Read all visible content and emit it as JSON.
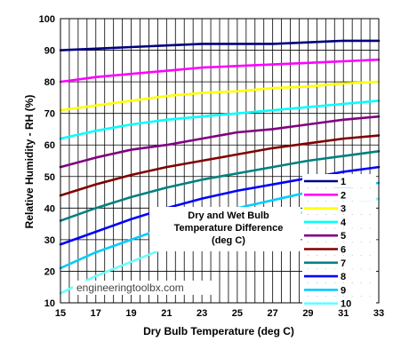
{
  "chart_data": {
    "type": "line",
    "title": "",
    "xlabel": "Dry Bulb Temperature (deg C)",
    "ylabel": "Relative Humidity - RH (%)",
    "xlim": [
      15,
      33
    ],
    "ylim": [
      10,
      100
    ],
    "x_ticks": [
      "15",
      "17",
      "19",
      "21",
      "23",
      "25",
      "27",
      "29",
      "31",
      "33"
    ],
    "y_ticks": [
      "10",
      "20",
      "30",
      "40",
      "50",
      "60",
      "70",
      "80",
      "90",
      "100"
    ],
    "grid": true,
    "legend_position": "right",
    "legend_title": "Dry and Wet Bulb Temperature Difference (deg C)",
    "watermark": "engineeringtoolbx.com",
    "x": [
      15,
      17,
      19,
      21,
      23,
      25,
      27,
      29,
      31,
      33
    ],
    "series": [
      {
        "name": "1",
        "color": "#000080",
        "values": [
          90,
          90.5,
          91,
          91.5,
          92,
          92,
          92,
          92.5,
          93,
          93
        ]
      },
      {
        "name": "2",
        "color": "#ff00ff",
        "values": [
          80,
          81.5,
          82.5,
          83.5,
          84.5,
          85,
          85.5,
          86,
          86.5,
          87
        ]
      },
      {
        "name": "3",
        "color": "#ffff00",
        "values": [
          71,
          72.5,
          74,
          75.5,
          76.5,
          77,
          78,
          78.5,
          79.5,
          80
        ]
      },
      {
        "name": "4",
        "color": "#00ffff",
        "values": [
          62,
          64.5,
          66.5,
          68,
          69,
          70,
          71,
          72,
          73,
          74
        ]
      },
      {
        "name": "5",
        "color": "#800080",
        "values": [
          53,
          56,
          58.5,
          60,
          62,
          64,
          65,
          66.5,
          68,
          69
        ]
      },
      {
        "name": "6",
        "color": "#800000",
        "values": [
          44,
          47.5,
          50.5,
          53,
          55,
          57,
          59,
          60.5,
          62,
          63
        ]
      },
      {
        "name": "7",
        "color": "#008080",
        "values": [
          36,
          40,
          43.5,
          46.5,
          49,
          51,
          53,
          55,
          56.5,
          58
        ]
      },
      {
        "name": "8",
        "color": "#0000ff",
        "values": [
          28.5,
          32.5,
          36.5,
          40,
          43,
          45.5,
          47.5,
          49.5,
          51.5,
          53
        ]
      },
      {
        "name": "9",
        "color": "#00ccff",
        "values": [
          21,
          26,
          30,
          34,
          37,
          40,
          42.5,
          45,
          46.5,
          48
        ]
      },
      {
        "name": "10",
        "color": "#66ffff",
        "values": [
          13,
          18.5,
          23,
          27.5,
          31,
          34,
          36.5,
          39,
          41,
          43
        ]
      }
    ]
  }
}
